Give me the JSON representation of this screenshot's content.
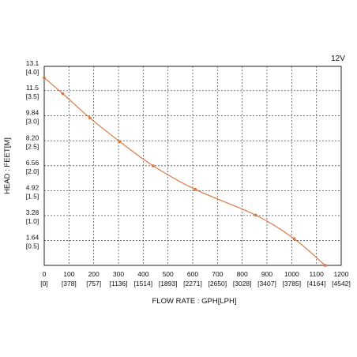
{
  "chart_data": {
    "type": "line",
    "title": "",
    "annotation": "12V",
    "xlabel": "FLOW RATE : GPH[LPH]",
    "ylabel": "HEAD : FEET[M]",
    "xlim": [
      0,
      1200
    ],
    "ylim": [
      0,
      13.1
    ],
    "grid": true,
    "x_ticks": [
      {
        "value": 0,
        "label": "0",
        "sub": "[0]"
      },
      {
        "value": 100,
        "label": "100",
        "sub": "[378]"
      },
      {
        "value": 200,
        "label": "200",
        "sub": "[757]"
      },
      {
        "value": 300,
        "label": "300",
        "sub": "[1136]"
      },
      {
        "value": 400,
        "label": "400",
        "sub": "[1514]"
      },
      {
        "value": 500,
        "label": "500",
        "sub": "[1893]"
      },
      {
        "value": 600,
        "label": "600",
        "sub": "[2271]"
      },
      {
        "value": 700,
        "label": "700",
        "sub": "[2650]"
      },
      {
        "value": 800,
        "label": "800",
        "sub": "[3028]"
      },
      {
        "value": 900,
        "label": "900",
        "sub": "[3407]"
      },
      {
        "value": 1000,
        "label": "1000",
        "sub": "[3785]"
      },
      {
        "value": 1100,
        "label": "1100",
        "sub": "[4164]"
      },
      {
        "value": 1200,
        "label": "1200",
        "sub": "[4542]"
      }
    ],
    "y_ticks": [
      {
        "value": 13.1,
        "label": "13.1",
        "sub": "[4.0]"
      },
      {
        "value": 11.5,
        "label": "11.5",
        "sub": "[3.5]"
      },
      {
        "value": 9.84,
        "label": "9.84",
        "sub": "[3.0]"
      },
      {
        "value": 8.2,
        "label": "8.20",
        "sub": "[2.5]"
      },
      {
        "value": 6.56,
        "label": "6.56",
        "sub": "[2.0]"
      },
      {
        "value": 4.92,
        "label": "4.92",
        "sub": "[1.5]"
      },
      {
        "value": 3.28,
        "label": "3.28",
        "sub": "[1.0]"
      },
      {
        "value": 1.64,
        "label": "1.64",
        "sub": "[0.5]"
      }
    ],
    "series": [
      {
        "color": "#d97a45",
        "x": [
          0,
          75,
          185,
          305,
          440,
          610,
          855,
          1010,
          1135
        ],
        "y": [
          12.35,
          11.3,
          9.7,
          8.15,
          6.55,
          5.0,
          3.3,
          1.75,
          0
        ]
      }
    ]
  }
}
